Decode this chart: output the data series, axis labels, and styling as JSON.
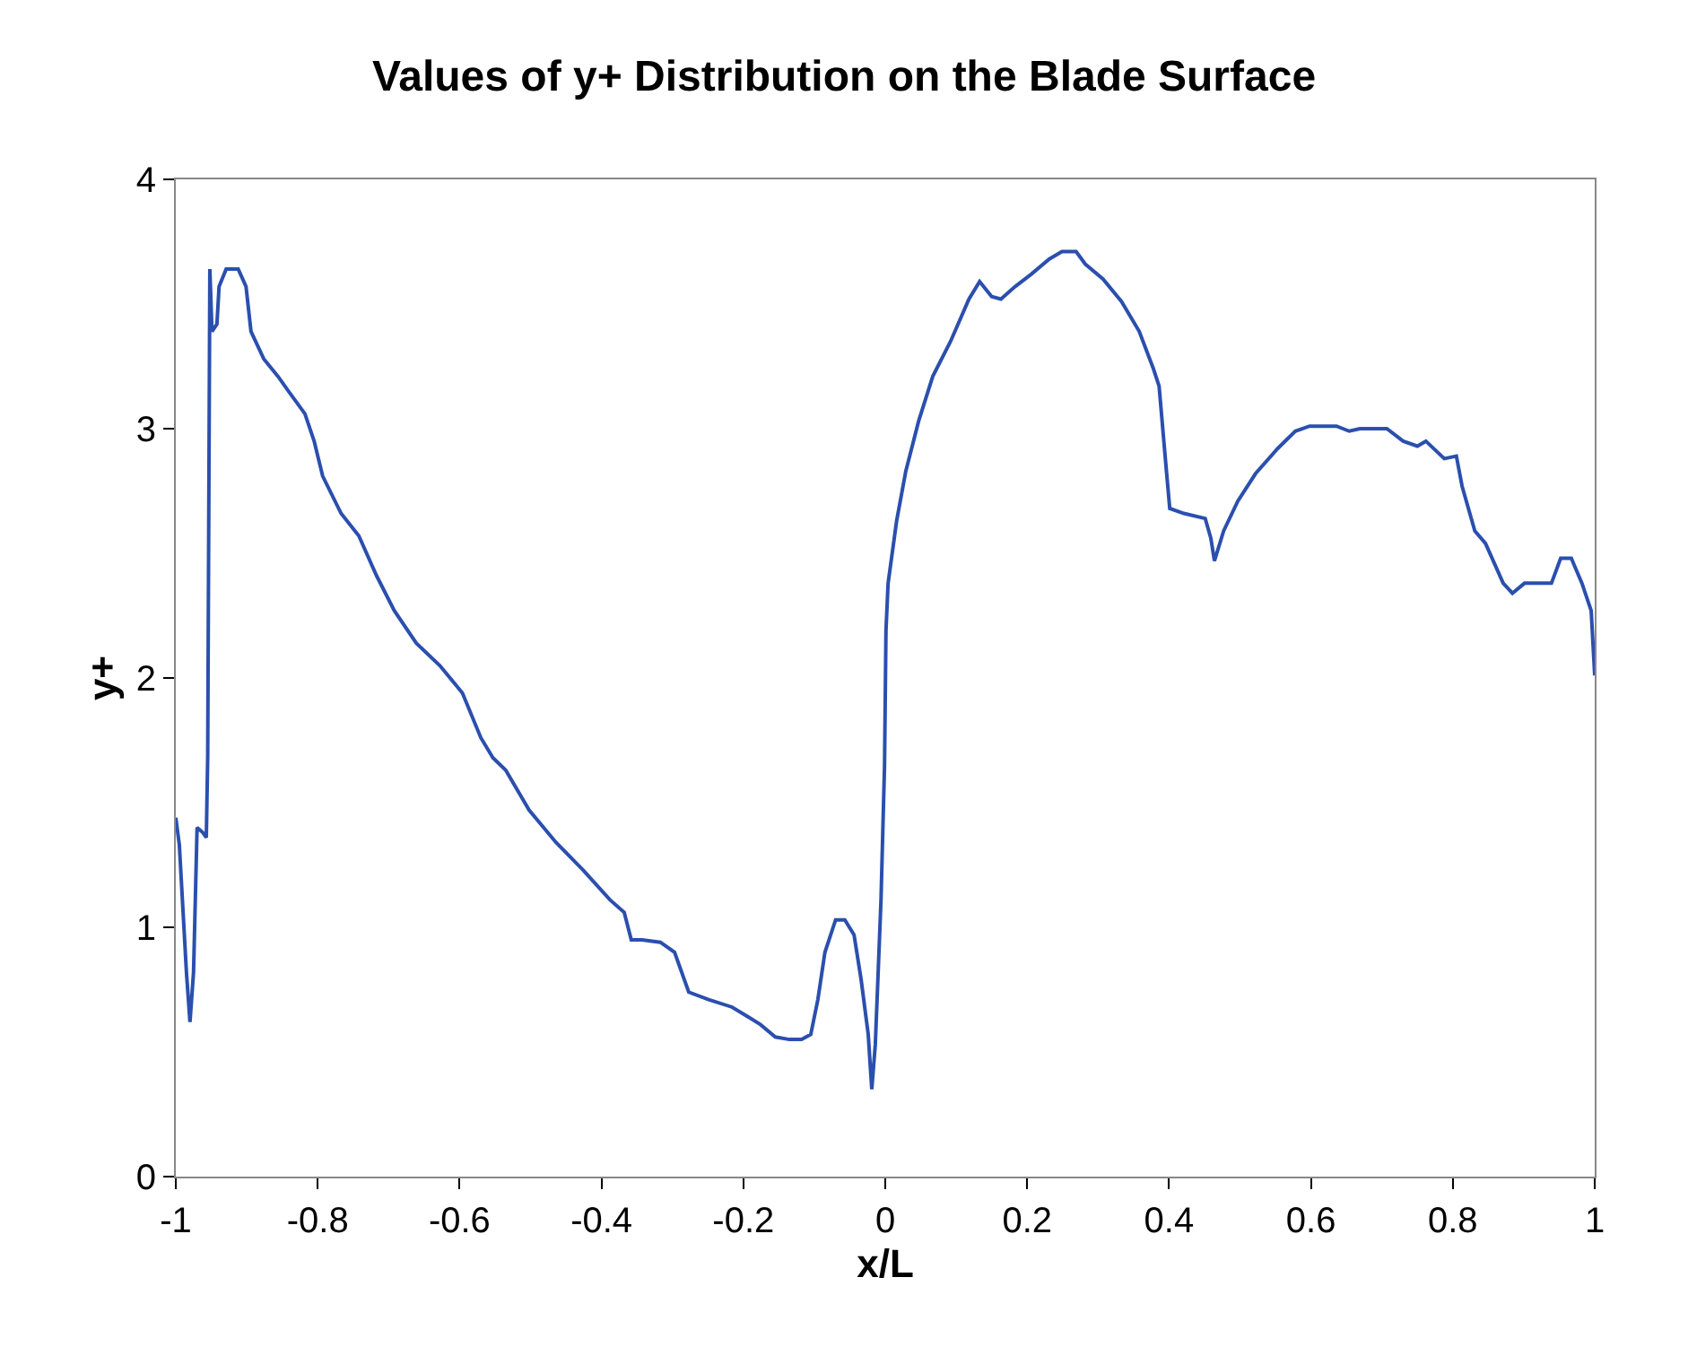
{
  "chart_data": {
    "type": "line",
    "title": "Values of y+ Distribution on the Blade Surface",
    "xlabel": "x/L",
    "ylabel": "y+",
    "xlim": [
      -1,
      1
    ],
    "xticks": [
      -1,
      -0.8,
      -0.6,
      -0.4,
      -0.2,
      0,
      0.2,
      0.4,
      0.6,
      0.8,
      1
    ],
    "ylim": [
      0,
      4
    ],
    "yticks": [
      0,
      1,
      2,
      3,
      4
    ],
    "marker": "none",
    "line_style": "solid",
    "series": [
      {
        "color": "#2b4fae",
        "x": [
          -1,
          -0.995,
          -0.985,
          -0.98,
          -0.975,
          -0.97,
          -0.962,
          -0.957,
          -0.955,
          -0.954,
          -0.952,
          -0.949,
          -0.942,
          -0.939,
          -0.929,
          -0.912,
          -0.901,
          -0.894,
          -0.876,
          -0.856,
          -0.841,
          -0.818,
          -0.805,
          -0.793,
          -0.767,
          -0.742,
          -0.717,
          -0.692,
          -0.661,
          -0.628,
          -0.596,
          -0.57,
          -0.553,
          -0.535,
          -0.502,
          -0.464,
          -0.426,
          -0.388,
          -0.368,
          -0.358,
          -0.343,
          -0.317,
          -0.297,
          -0.277,
          -0.249,
          -0.216,
          -0.193,
          -0.176,
          -0.155,
          -0.135,
          -0.118,
          -0.105,
          -0.095,
          -0.085,
          -0.07,
          -0.057,
          -0.044,
          -0.034,
          -0.024,
          -0.019,
          -0.014,
          -0.006,
          -0.001,
          0.001,
          0.004,
          0.016,
          0.029,
          0.047,
          0.067,
          0.092,
          0.118,
          0.133,
          0.15,
          0.163,
          0.183,
          0.206,
          0.231,
          0.249,
          0.269,
          0.282,
          0.307,
          0.333,
          0.358,
          0.378,
          0.386,
          0.396,
          0.401,
          0.421,
          0.451,
          0.459,
          0.464,
          0.477,
          0.497,
          0.522,
          0.553,
          0.578,
          0.598,
          0.636,
          0.654,
          0.669,
          0.707,
          0.73,
          0.75,
          0.762,
          0.788,
          0.805,
          0.813,
          0.831,
          0.846,
          0.871,
          0.884,
          0.901,
          0.939,
          0.952,
          0.967,
          0.982,
          0.995,
          1.0
        ],
        "values": [
          1.44,
          1.33,
          0.82,
          0.62,
          0.82,
          1.4,
          1.38,
          1.36,
          1.69,
          2.34,
          3.64,
          3.39,
          3.42,
          3.57,
          3.64,
          3.64,
          3.57,
          3.39,
          3.28,
          3.21,
          3.15,
          3.06,
          2.95,
          2.81,
          2.66,
          2.57,
          2.41,
          2.27,
          2.14,
          2.05,
          1.94,
          1.76,
          1.68,
          1.63,
          1.47,
          1.34,
          1.23,
          1.11,
          1.06,
          0.95,
          0.95,
          0.94,
          0.9,
          0.74,
          0.71,
          0.68,
          0.64,
          0.61,
          0.56,
          0.55,
          0.55,
          0.57,
          0.71,
          0.9,
          1.03,
          1.03,
          0.97,
          0.79,
          0.57,
          0.35,
          0.53,
          1.11,
          1.65,
          2.19,
          2.38,
          2.63,
          2.83,
          3.03,
          3.21,
          3.35,
          3.52,
          3.59,
          3.53,
          3.52,
          3.57,
          3.62,
          3.68,
          3.71,
          3.71,
          3.66,
          3.6,
          3.51,
          3.39,
          3.24,
          3.17,
          2.84,
          2.68,
          2.66,
          2.64,
          2.56,
          2.47,
          2.59,
          2.71,
          2.82,
          2.92,
          2.99,
          3.01,
          3.01,
          2.99,
          3.0,
          3.0,
          2.95,
          2.93,
          2.95,
          2.88,
          2.89,
          2.77,
          2.59,
          2.54,
          2.38,
          2.34,
          2.38,
          2.38,
          2.48,
          2.48,
          2.38,
          2.27,
          2.01
        ]
      }
    ]
  }
}
